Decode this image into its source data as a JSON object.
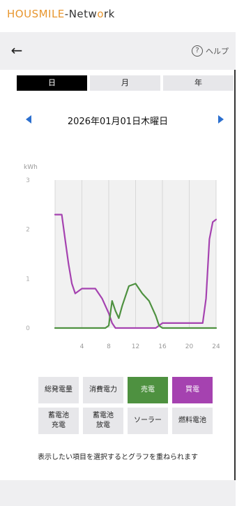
{
  "header": {
    "brand_prefix": "HOUSMILE",
    "brand_suffix": "-Netw",
    "brand_o": "o",
    "brand_end": "rk"
  },
  "nav": {
    "back_icon": "arrow-left-icon",
    "help_label": "ヘルプ"
  },
  "tabs": [
    {
      "label": "日",
      "active": true
    },
    {
      "label": "月",
      "active": false
    },
    {
      "label": "年",
      "active": false
    }
  ],
  "date_label": "2026年01月01日木曜日",
  "chart_data": {
    "type": "line",
    "unit_label": "kWh",
    "ylim": [
      0,
      3
    ],
    "yticks": [
      "0",
      "1",
      "2",
      "3"
    ],
    "xlim": [
      0,
      24
    ],
    "xticks": [
      "4",
      "8",
      "12",
      "16",
      "20",
      "24"
    ],
    "grid": true,
    "series": [
      {
        "color": "#a542b0",
        "x": [
          0,
          1,
          1.5,
          2,
          2.5,
          3,
          3.5,
          4,
          5,
          6,
          7,
          8,
          8.5,
          9,
          10,
          11,
          12,
          13,
          14,
          15,
          15.5,
          16,
          17,
          18,
          19,
          20,
          21,
          22,
          22.5,
          23,
          23.5,
          24
        ],
        "y": [
          2.3,
          2.3,
          1.8,
          1.3,
          0.9,
          0.7,
          0.75,
          0.8,
          0.8,
          0.8,
          0.6,
          0.3,
          0.1,
          0.0,
          0.0,
          0.0,
          0.0,
          0.0,
          0.0,
          0.0,
          0.05,
          0.1,
          0.1,
          0.1,
          0.1,
          0.1,
          0.1,
          0.1,
          0.6,
          1.8,
          2.15,
          2.2
        ]
      },
      {
        "color": "#4e9140",
        "x": [
          0,
          1,
          2,
          3,
          4,
          5,
          6,
          7,
          7.5,
          8,
          8.5,
          9,
          9.5,
          10,
          11,
          12,
          13,
          14,
          15,
          15.5,
          16,
          17,
          18,
          19,
          20,
          21,
          22,
          23,
          24
        ],
        "y": [
          0,
          0,
          0,
          0,
          0,
          0,
          0,
          0,
          0,
          0.05,
          0.55,
          0.35,
          0.2,
          0.45,
          0.85,
          0.9,
          0.7,
          0.55,
          0.25,
          0.05,
          0,
          0,
          0,
          0,
          0,
          0,
          0,
          0,
          0
        ]
      }
    ]
  },
  "buttons": [
    {
      "label": "総発電量",
      "style": "plain"
    },
    {
      "label": "消費電力",
      "style": "plain"
    },
    {
      "label": "売電",
      "style": "green"
    },
    {
      "label": "買電",
      "style": "purple"
    },
    {
      "label": "蓄電池\n充電",
      "style": "plain"
    },
    {
      "label": "蓄電池\n放電",
      "style": "plain"
    },
    {
      "label": "ソーラー",
      "style": "plain"
    },
    {
      "label": "燃料電池",
      "style": "plain"
    }
  ],
  "note": "表示したい項目を選択するとグラフを重ねられます"
}
